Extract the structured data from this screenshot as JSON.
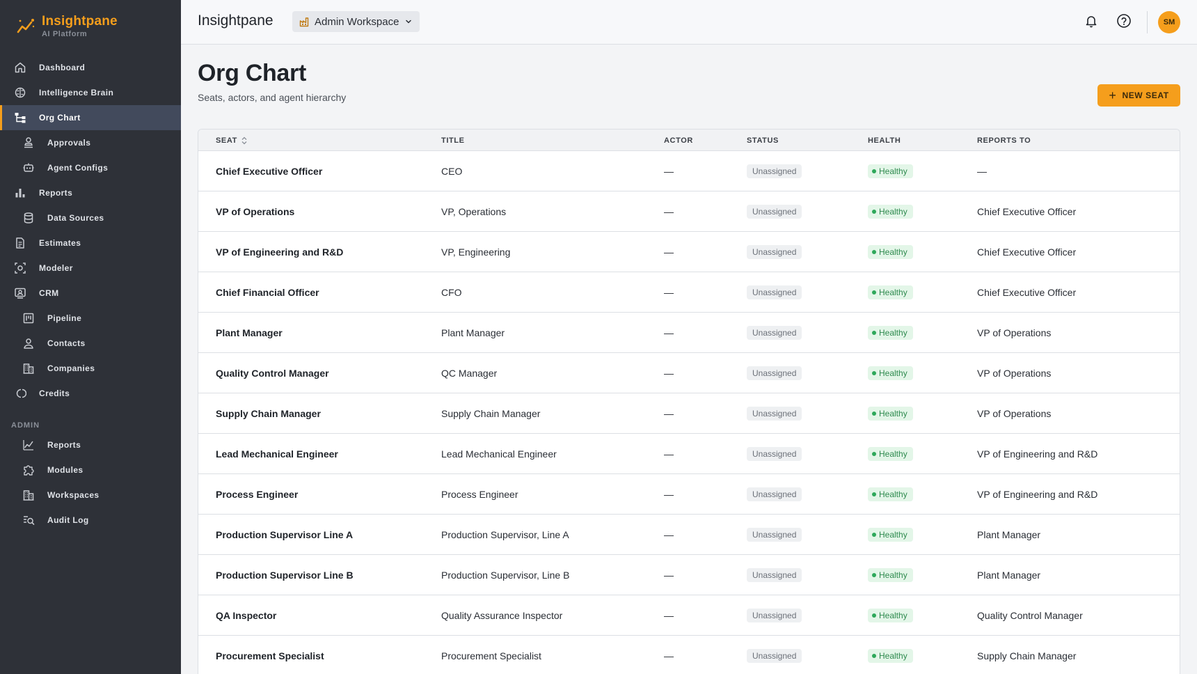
{
  "brand": {
    "name": "Insightpane",
    "subtitle": "AI Platform"
  },
  "sidebar": {
    "items": [
      {
        "label": "Dashboard",
        "icon": "home-icon",
        "sub": false,
        "active": false
      },
      {
        "label": "Intelligence Brain",
        "icon": "brain-icon",
        "sub": false,
        "active": false
      },
      {
        "label": "Org Chart",
        "icon": "hierarchy-icon",
        "sub": false,
        "active": true
      },
      {
        "label": "Approvals",
        "icon": "stamp-icon",
        "sub": true,
        "active": false
      },
      {
        "label": "Agent Configs",
        "icon": "robot-icon",
        "sub": true,
        "active": false
      },
      {
        "label": "Reports",
        "icon": "bar-chart-icon",
        "sub": false,
        "active": false
      },
      {
        "label": "Data Sources",
        "icon": "database-icon",
        "sub": true,
        "active": false
      },
      {
        "label": "Estimates",
        "icon": "document-icon",
        "sub": false,
        "active": false
      },
      {
        "label": "Modeler",
        "icon": "modeler-icon",
        "sub": false,
        "active": false
      },
      {
        "label": "CRM",
        "icon": "crm-icon",
        "sub": false,
        "active": false
      },
      {
        "label": "Pipeline",
        "icon": "pipeline-icon",
        "sub": true,
        "active": false
      },
      {
        "label": "Contacts",
        "icon": "person-icon",
        "sub": true,
        "active": false
      },
      {
        "label": "Companies",
        "icon": "building-icon",
        "sub": true,
        "active": false
      },
      {
        "label": "Credits",
        "icon": "coins-icon",
        "sub": false,
        "active": false
      }
    ],
    "admin_section": "ADMIN",
    "admin_items": [
      {
        "label": "Reports",
        "icon": "line-chart-icon"
      },
      {
        "label": "Modules",
        "icon": "puzzle-icon"
      },
      {
        "label": "Workspaces",
        "icon": "building-icon"
      },
      {
        "label": "Audit Log",
        "icon": "search-list-icon"
      }
    ]
  },
  "topbar": {
    "title": "Insightpane",
    "workspace": "Admin Workspace",
    "avatar_initials": "SM"
  },
  "page": {
    "title": "Org Chart",
    "subtitle": "Seats, actors, and agent hierarchy",
    "new_button": "NEW SEAT"
  },
  "table": {
    "columns": [
      "SEAT",
      "TITLE",
      "ACTOR",
      "STATUS",
      "HEALTH",
      "REPORTS TO"
    ],
    "rows": [
      {
        "seat": "Chief Executive Officer",
        "title": "CEO",
        "actor": "—",
        "status": "Unassigned",
        "health": "Healthy",
        "reports_to": "—"
      },
      {
        "seat": "VP of Operations",
        "title": "VP, Operations",
        "actor": "—",
        "status": "Unassigned",
        "health": "Healthy",
        "reports_to": "Chief Executive Officer"
      },
      {
        "seat": "VP of Engineering and R&D",
        "title": "VP, Engineering",
        "actor": "—",
        "status": "Unassigned",
        "health": "Healthy",
        "reports_to": "Chief Executive Officer"
      },
      {
        "seat": "Chief Financial Officer",
        "title": "CFO",
        "actor": "—",
        "status": "Unassigned",
        "health": "Healthy",
        "reports_to": "Chief Executive Officer"
      },
      {
        "seat": "Plant Manager",
        "title": "Plant Manager",
        "actor": "—",
        "status": "Unassigned",
        "health": "Healthy",
        "reports_to": "VP of Operations"
      },
      {
        "seat": "Quality Control Manager",
        "title": "QC Manager",
        "actor": "—",
        "status": "Unassigned",
        "health": "Healthy",
        "reports_to": "VP of Operations"
      },
      {
        "seat": "Supply Chain Manager",
        "title": "Supply Chain Manager",
        "actor": "—",
        "status": "Unassigned",
        "health": "Healthy",
        "reports_to": "VP of Operations"
      },
      {
        "seat": "Lead Mechanical Engineer",
        "title": "Lead Mechanical Engineer",
        "actor": "—",
        "status": "Unassigned",
        "health": "Healthy",
        "reports_to": "VP of Engineering and R&D"
      },
      {
        "seat": "Process Engineer",
        "title": "Process Engineer",
        "actor": "—",
        "status": "Unassigned",
        "health": "Healthy",
        "reports_to": "VP of Engineering and R&D"
      },
      {
        "seat": "Production Supervisor Line A",
        "title": "Production Supervisor, Line A",
        "actor": "—",
        "status": "Unassigned",
        "health": "Healthy",
        "reports_to": "Plant Manager"
      },
      {
        "seat": "Production Supervisor Line B",
        "title": "Production Supervisor, Line B",
        "actor": "—",
        "status": "Unassigned",
        "health": "Healthy",
        "reports_to": "Plant Manager"
      },
      {
        "seat": "QA Inspector",
        "title": "Quality Assurance Inspector",
        "actor": "—",
        "status": "Unassigned",
        "health": "Healthy",
        "reports_to": "Quality Control Manager"
      },
      {
        "seat": "Procurement Specialist",
        "title": "Procurement Specialist",
        "actor": "—",
        "status": "Unassigned",
        "health": "Healthy",
        "reports_to": "Supply Chain Manager"
      }
    ]
  },
  "colors": {
    "accent": "#f59e1c",
    "sidebar_bg": "#2e3138",
    "active_bg": "#424a5c",
    "healthy": "#2e8a4e"
  }
}
